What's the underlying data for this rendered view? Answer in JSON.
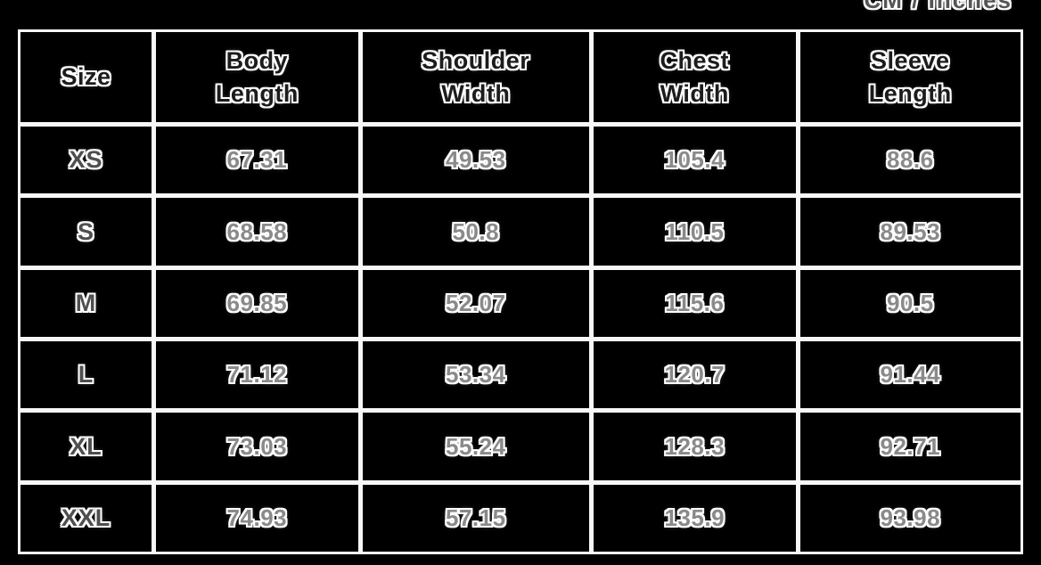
{
  "page": {
    "unit_label": "CM / Inches"
  },
  "colors": {
    "background": "#000000",
    "gridlines": "#ffffff",
    "text_outline": "#ffffff",
    "header_text": "#1c1c1c",
    "size_text": "#4f4f4f",
    "value_text": "#8a8a8a"
  },
  "table": {
    "columns": [
      {
        "label": "Size"
      },
      {
        "label": "Body\nLength"
      },
      {
        "label": "Shoulder\nWidth"
      },
      {
        "label": "Chest\nWidth"
      },
      {
        "label": "Sleeve\nLength"
      }
    ],
    "rows": [
      {
        "size": "XS",
        "values": [
          "67.31",
          "49.53",
          "105.4",
          "88.6"
        ]
      },
      {
        "size": "S",
        "values": [
          "68.58",
          "50.8",
          "110.5",
          "89.53"
        ]
      },
      {
        "size": "M",
        "values": [
          "69.85",
          "52.07",
          "115.6",
          "90.5"
        ]
      },
      {
        "size": "L",
        "values": [
          "71.12",
          "53.34",
          "120.7",
          "91.44"
        ]
      },
      {
        "size": "XL",
        "values": [
          "73.03",
          "55.24",
          "128.3",
          "92.71"
        ]
      },
      {
        "size": "XXL",
        "values": [
          "74.93",
          "57.15",
          "135.9",
          "93.98"
        ]
      }
    ]
  },
  "chart_data": {
    "type": "table",
    "title": "CM / Inches",
    "columns": [
      "Size",
      "Body Length",
      "Shoulder Width",
      "Chest Width",
      "Sleeve Length"
    ],
    "rows": [
      [
        "XS",
        67.31,
        49.53,
        105.4,
        88.6
      ],
      [
        "S",
        68.58,
        50.8,
        110.5,
        89.53
      ],
      [
        "M",
        69.85,
        52.07,
        115.6,
        90.5
      ],
      [
        "L",
        71.12,
        53.34,
        120.7,
        91.44
      ],
      [
        "XL",
        73.03,
        55.24,
        128.3,
        92.71
      ],
      [
        "XXL",
        74.93,
        57.15,
        135.9,
        93.98
      ]
    ]
  }
}
